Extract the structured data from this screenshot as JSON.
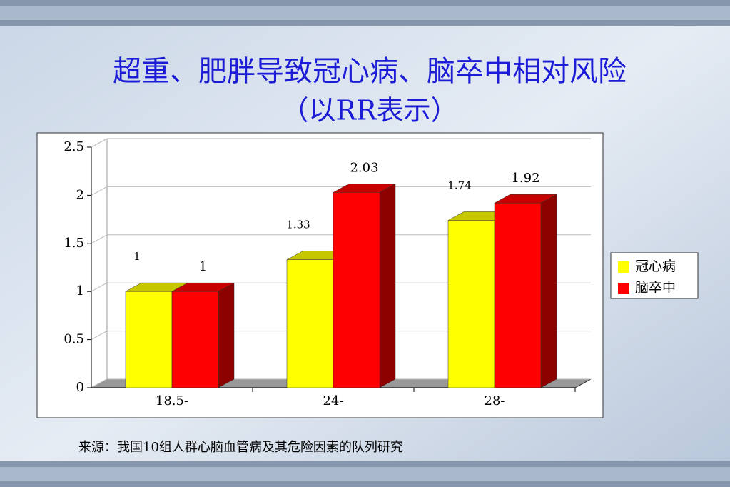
{
  "chart_data": {
    "type": "bar3d",
    "title": "超重、肥胖导致冠心病、脑卒中相对风险",
    "subtitle": "（以RR表示）",
    "categories": [
      "18.5-",
      "24-",
      "28-"
    ],
    "series": [
      {
        "name": "冠心病",
        "color": "#ffff00",
        "values": [
          1,
          1.33,
          1.74
        ]
      },
      {
        "name": "脑卒中",
        "color": "#ff0000",
        "values": [
          1,
          2.03,
          1.92
        ]
      }
    ],
    "ylim": [
      0,
      2.5
    ],
    "yticks": [
      0,
      0.5,
      1,
      1.5,
      2,
      2.5
    ],
    "grid": true,
    "legend": "right",
    "source": "来源：我国10组人群心脑血管病及其危险因素的队列研究"
  }
}
